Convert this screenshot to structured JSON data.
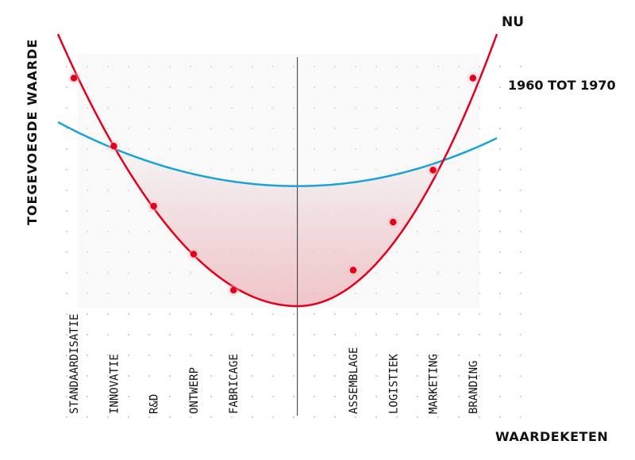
{
  "colors": {
    "now": "#e3001b",
    "past": "#1aa3d6",
    "fill": "#e3001b",
    "grid_dot": "#c9c9c9",
    "center_line": "#333333"
  },
  "chart_data": {
    "type": "line",
    "xlabel": "WAARDEKETEN",
    "ylabel": "TOEGEVOEGDE WAARDE",
    "categories": [
      "STANDAARDISATIE",
      "INNOVATIE",
      "R&D",
      "ONTWERP",
      "FABRICAGE",
      "ASSEMBLAGE",
      "LOGISTIEK",
      "MARKETING",
      "BRANDING"
    ],
    "series": [
      {
        "name": "NU",
        "values": [
          9.6,
          7.9,
          6.4,
          5.2,
          4.3,
          4.8,
          6.0,
          7.3,
          9.6
        ],
        "curve_extent": {
          "x_start": -0.4,
          "x_end": 10.6,
          "y_start": 10.7,
          "y_end": 10.7,
          "minimum": {
            "x": 5.6,
            "y": 3.9
          }
        }
      },
      {
        "name": "1960 TOT 1970",
        "curve_extent": {
          "x_start": -0.4,
          "x_end": 10.6,
          "y_start": 8.5,
          "y_end": 8.1,
          "minimum": {
            "x": 5.6,
            "y": 6.9
          }
        }
      }
    ],
    "xlim": [
      -0.4,
      10.6
    ],
    "ylim": [
      3.9,
      10.7
    ],
    "grid": true,
    "center_divider_at_x": 5.6
  }
}
